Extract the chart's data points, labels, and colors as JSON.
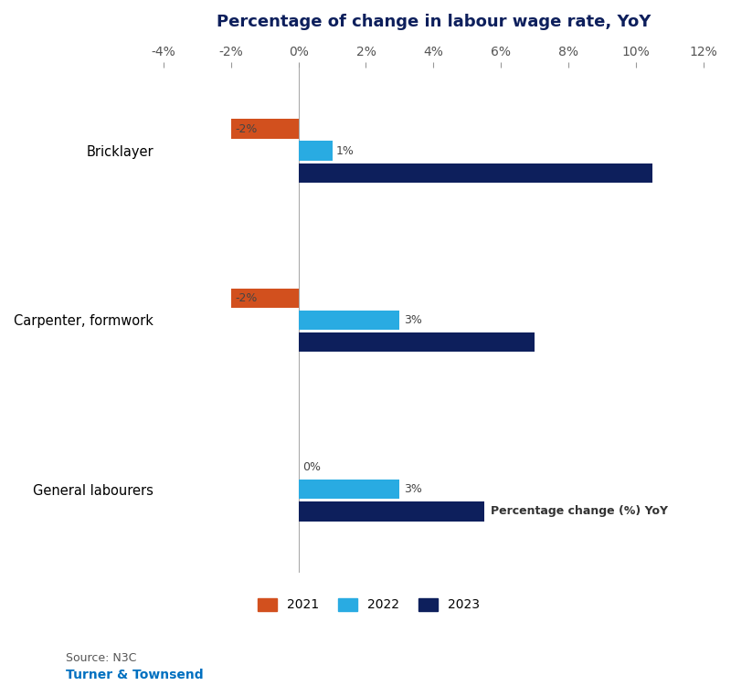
{
  "title": "Percentage of change in labour wage rate, YoY",
  "categories": [
    "Bricklayer",
    "Carpenter, formwork",
    "General labourers"
  ],
  "years": [
    "2021",
    "2022",
    "2023"
  ],
  "values": {
    "2021": [
      -2,
      -2,
      0
    ],
    "2022": [
      1,
      3,
      3
    ],
    "2023": [
      10.5,
      7,
      5.5
    ]
  },
  "labels": {
    "2021": [
      "-2%",
      "-2%",
      "0%"
    ],
    "2022": [
      "1%",
      "3%",
      "3%"
    ],
    "2023": [
      "",
      "",
      ""
    ]
  },
  "colors": {
    "2021": "#D2501E",
    "2022": "#29ABE2",
    "2023": "#0D1F5C"
  },
  "xlim": [
    -4,
    12
  ],
  "xticks": [
    -4,
    -2,
    0,
    2,
    4,
    6,
    8,
    10,
    12
  ],
  "xtick_labels": [
    "-4%",
    "-2%",
    "0%",
    "2%",
    "4%",
    "6%",
    "8%",
    "10%",
    "12%"
  ],
  "ylabel_annotation": "Percentage change (%) YoY",
  "source_text": "Source: N3C",
  "brand_text": "Turner & Townsend",
  "brand_color": "#0070C0",
  "background_color": "#FFFFFF",
  "bar_height": 0.18,
  "title_color": "#0D1F5C",
  "title_fontsize": 13,
  "axis_fontsize": 10,
  "label_fontsize": 9,
  "legend_fontsize": 10,
  "source_fontsize": 9,
  "brand_fontsize": 10
}
